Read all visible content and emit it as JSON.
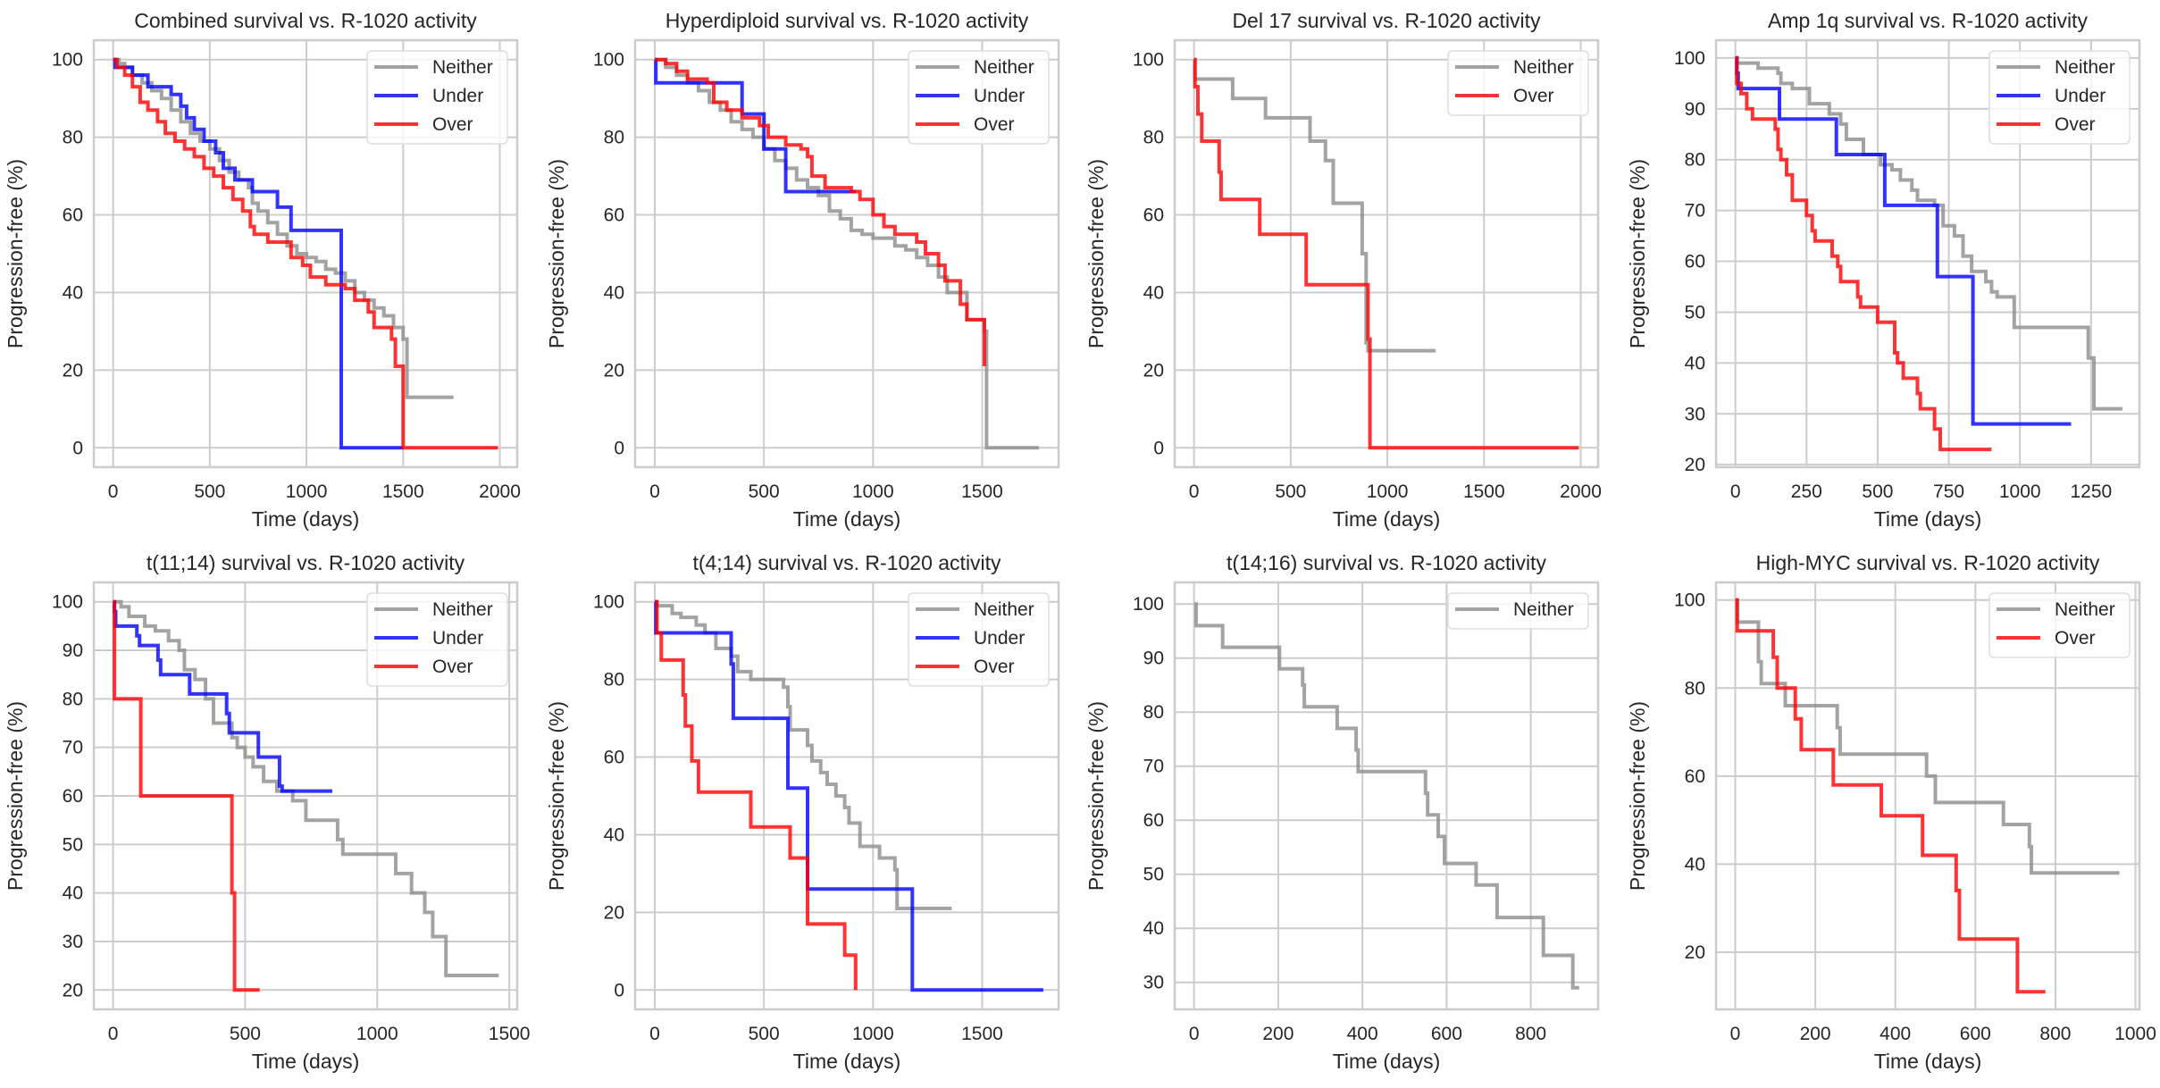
{
  "figure": {
    "layout": "2 rows x 4 columns",
    "series_colors": {
      "Neither": "#8c8c8c",
      "Under": "#0000ff",
      "Over": "#ff0000"
    }
  },
  "chart_data": [
    {
      "type": "line",
      "step": true,
      "title": "Combined survival vs. R-1020 activity",
      "xlabel": "Time (days)",
      "ylabel": "Progression-free (%)",
      "xticks": [
        0,
        500,
        1000,
        1500,
        2000
      ],
      "yticks": [
        0,
        20,
        40,
        60,
        80,
        100
      ],
      "xlim": [
        -100,
        2090
      ],
      "ylim": [
        -5,
        105
      ],
      "grid": true,
      "legend": {
        "position": "top-right",
        "entries": [
          "Neither",
          "Under",
          "Over"
        ]
      },
      "series": [
        {
          "name": "Neither",
          "x": [
            0,
            30,
            60,
            100,
            150,
            200,
            250,
            300,
            350,
            400,
            450,
            500,
            550,
            600,
            650,
            700,
            720,
            750,
            800,
            850,
            900,
            950,
            1000,
            1050,
            1100,
            1150,
            1200,
            1250,
            1300,
            1350,
            1400,
            1450,
            1500,
            1520,
            1760
          ],
          "y": [
            100,
            99,
            98,
            96,
            94,
            92,
            90,
            87,
            84,
            81,
            79,
            77,
            74,
            71,
            69,
            67,
            63,
            61,
            58,
            55,
            52,
            50,
            49,
            48,
            46,
            45,
            43,
            40,
            38,
            36,
            34,
            31,
            28,
            13,
            13
          ]
        },
        {
          "name": "Under",
          "x": [
            0,
            10,
            100,
            180,
            300,
            350,
            380,
            420,
            470,
            530,
            570,
            630,
            720,
            850,
            920,
            1180,
            1500
          ],
          "y": [
            100,
            98,
            96,
            93,
            91,
            88,
            85,
            82,
            79,
            76,
            72,
            69,
            66,
            62,
            56,
            0,
            0
          ]
        },
        {
          "name": "Over",
          "x": [
            0,
            20,
            60,
            100,
            140,
            180,
            230,
            270,
            320,
            370,
            420,
            470,
            520,
            570,
            620,
            670,
            710,
            730,
            800,
            880,
            920,
            980,
            1020,
            1100,
            1200,
            1250,
            1320,
            1350,
            1440,
            1460,
            1500,
            1990
          ],
          "y": [
            100,
            98,
            96,
            93,
            89,
            87,
            84,
            81,
            79,
            77,
            75,
            72,
            70,
            67,
            64,
            61,
            57,
            55,
            53,
            53,
            49,
            47,
            44,
            42,
            41,
            38,
            35,
            31,
            28,
            21,
            0,
            0
          ]
        }
      ]
    },
    {
      "type": "line",
      "step": true,
      "title": "Hyperdiploid survival vs. R-1020 activity",
      "xlabel": "Time (days)",
      "ylabel": "Progression-free (%)",
      "xticks": [
        0,
        500,
        1000,
        1500
      ],
      "yticks": [
        0,
        20,
        40,
        60,
        80,
        100
      ],
      "xlim": [
        -90,
        1850
      ],
      "ylim": [
        -5,
        105
      ],
      "grid": true,
      "legend": {
        "position": "top-right",
        "entries": [
          "Neither",
          "Under",
          "Over"
        ]
      },
      "series": [
        {
          "name": "Neither",
          "x": [
            0,
            50,
            100,
            150,
            200,
            250,
            300,
            350,
            400,
            450,
            500,
            550,
            600,
            650,
            700,
            750,
            800,
            850,
            900,
            950,
            1000,
            1100,
            1150,
            1200,
            1250,
            1300,
            1340,
            1430,
            1510,
            1520,
            1760
          ],
          "y": [
            100,
            98,
            96,
            94,
            92,
            89,
            87,
            84,
            82,
            80,
            77,
            74,
            72,
            69,
            67,
            65,
            61,
            59,
            56,
            55,
            54,
            52,
            51,
            49,
            47,
            44,
            40,
            33,
            30,
            0,
            0
          ]
        },
        {
          "name": "Under",
          "x": [
            0,
            5,
            400,
            500,
            600,
            920
          ],
          "y": [
            100,
            94,
            86,
            77,
            66,
            66
          ]
        },
        {
          "name": "Over",
          "x": [
            0,
            50,
            100,
            150,
            240,
            270,
            330,
            400,
            480,
            520,
            600,
            670,
            700,
            720,
            780,
            900,
            940,
            1000,
            1050,
            1100,
            1200,
            1240,
            1300,
            1330,
            1400,
            1430,
            1510
          ],
          "y": [
            100,
            99,
            97,
            95,
            94,
            89,
            87,
            85,
            83,
            80,
            78,
            77,
            75,
            70,
            67,
            66,
            64,
            60,
            57,
            55,
            53,
            50,
            47,
            43,
            37,
            33,
            21
          ]
        }
      ]
    },
    {
      "type": "line",
      "step": true,
      "title": "Del 17 survival vs. R-1020 activity",
      "xlabel": "Time (days)",
      "ylabel": "Progression-free (%)",
      "xticks": [
        0,
        500,
        1000,
        1500,
        2000
      ],
      "yticks": [
        0,
        20,
        40,
        60,
        80,
        100
      ],
      "xlim": [
        -100,
        2090
      ],
      "ylim": [
        -5,
        105
      ],
      "grid": true,
      "legend": {
        "position": "top-right",
        "entries": [
          "Neither",
          "Over"
        ]
      },
      "series": [
        {
          "name": "Neither",
          "x": [
            0,
            5,
            200,
            370,
            600,
            680,
            720,
            870,
            890,
            900,
            1250
          ],
          "y": [
            100,
            95,
            90,
            85,
            79,
            74,
            63,
            50,
            27,
            25,
            25
          ]
        },
        {
          "name": "Over",
          "x": [
            0,
            5,
            20,
            40,
            130,
            140,
            340,
            580,
            900,
            910,
            1990
          ],
          "y": [
            100,
            93,
            86,
            79,
            71,
            64,
            55,
            42,
            28,
            0,
            0
          ]
        }
      ]
    },
    {
      "type": "line",
      "step": true,
      "title": "Amp 1q survival vs. R-1020 activity",
      "xlabel": "Time (days)",
      "ylabel": "Progression-free (%)",
      "xticks": [
        0,
        250,
        500,
        750,
        1000,
        1250
      ],
      "yticks": [
        20,
        30,
        40,
        50,
        60,
        70,
        80,
        90,
        100
      ],
      "xlim": [
        -68,
        1420
      ],
      "ylim": [
        19.5,
        103.5
      ],
      "grid": true,
      "legend": {
        "position": "top-right",
        "entries": [
          "Neither",
          "Under",
          "Over"
        ]
      },
      "series": [
        {
          "name": "Neither",
          "x": [
            0,
            5,
            80,
            150,
            160,
            200,
            260,
            330,
            370,
            390,
            450,
            510,
            550,
            580,
            620,
            640,
            700,
            730,
            770,
            800,
            830,
            880,
            900,
            920,
            980,
            1240,
            1260,
            1360
          ],
          "y": [
            100,
            99,
            98,
            97,
            95,
            94,
            91,
            89,
            87,
            84,
            81,
            79,
            78,
            76,
            74,
            72,
            71,
            67,
            65,
            61,
            58,
            56,
            54,
            53,
            47,
            41,
            31,
            31
          ]
        },
        {
          "name": "Under",
          "x": [
            0,
            5,
            10,
            155,
            355,
            525,
            710,
            835,
            1180
          ],
          "y": [
            100,
            97,
            94,
            88,
            81,
            71,
            57,
            28,
            28
          ]
        },
        {
          "name": "Over",
          "x": [
            0,
            5,
            20,
            40,
            60,
            140,
            150,
            160,
            180,
            200,
            250,
            270,
            280,
            340,
            360,
            370,
            430,
            440,
            500,
            560,
            570,
            590,
            640,
            650,
            700,
            720,
            900
          ],
          "y": [
            100,
            95,
            93,
            90,
            88,
            86,
            82,
            80,
            77,
            72,
            69,
            66,
            64,
            61,
            59,
            56,
            53,
            51,
            48,
            42,
            40,
            37,
            34,
            31,
            27,
            23,
            23
          ]
        }
      ]
    },
    {
      "type": "line",
      "step": true,
      "title": "t(11;14) survival vs. R-1020 activity",
      "xlabel": "Time (days)",
      "ylabel": "Progression-free (%)",
      "xticks": [
        0,
        500,
        1000,
        1500
      ],
      "yticks": [
        20,
        30,
        40,
        50,
        60,
        70,
        80,
        90,
        100
      ],
      "xlim": [
        -73,
        1530
      ],
      "ylim": [
        16,
        104
      ],
      "grid": true,
      "legend": {
        "position": "top-right",
        "entries": [
          "Neither",
          "Under",
          "Over"
        ]
      },
      "series": [
        {
          "name": "Neither",
          "x": [
            0,
            30,
            60,
            120,
            160,
            210,
            250,
            270,
            310,
            350,
            380,
            450,
            470,
            500,
            530,
            570,
            620,
            680,
            730,
            850,
            870,
            1070,
            1130,
            1180,
            1210,
            1260,
            1460
          ],
          "y": [
            100,
            99,
            97,
            95,
            94,
            92,
            90,
            86,
            84,
            80,
            75,
            72,
            70,
            68,
            66,
            63,
            61,
            59,
            55,
            51,
            48,
            44,
            40,
            36,
            31,
            23,
            23
          ]
        },
        {
          "name": "Under",
          "x": [
            0,
            5,
            10,
            90,
            100,
            170,
            180,
            290,
            430,
            440,
            550,
            630,
            640,
            830
          ],
          "y": [
            100,
            98,
            95,
            93,
            91,
            88,
            85,
            81,
            77,
            73,
            68,
            62,
            61,
            61
          ]
        },
        {
          "name": "Over",
          "x": [
            0,
            5,
            105,
            450,
            460,
            555
          ],
          "y": [
            100,
            80,
            60,
            40,
            20,
            20
          ]
        }
      ]
    },
    {
      "type": "line",
      "step": true,
      "title": "t(4;14) survival vs. R-1020 activity",
      "xlabel": "Time (days)",
      "ylabel": "Progression-free (%)",
      "xticks": [
        0,
        500,
        1000,
        1500
      ],
      "yticks": [
        0,
        20,
        40,
        60,
        80,
        100
      ],
      "xlim": [
        -90,
        1850
      ],
      "ylim": [
        -5,
        105
      ],
      "grid": true,
      "legend": {
        "position": "top-right",
        "entries": [
          "Neither",
          "Under",
          "Over"
        ]
      },
      "series": [
        {
          "name": "Neither",
          "x": [
            0,
            10,
            80,
            120,
            190,
            230,
            280,
            350,
            380,
            440,
            590,
            610,
            620,
            700,
            720,
            760,
            790,
            830,
            870,
            890,
            940,
            1030,
            1100,
            1110,
            1360
          ],
          "y": [
            100,
            99,
            97,
            96,
            94,
            92,
            88,
            86,
            82,
            80,
            78,
            73,
            67,
            63,
            59,
            56,
            53,
            50,
            47,
            43,
            37,
            34,
            31,
            21,
            21
          ]
        },
        {
          "name": "Under",
          "x": [
            0,
            5,
            350,
            360,
            610,
            700,
            1180,
            1780
          ],
          "y": [
            100,
            92,
            84,
            70,
            52,
            26,
            0,
            0
          ]
        },
        {
          "name": "Over",
          "x": [
            0,
            10,
            30,
            130,
            140,
            170,
            200,
            440,
            620,
            700,
            870,
            920
          ],
          "y": [
            100,
            92,
            85,
            76,
            68,
            59,
            51,
            42,
            34,
            17,
            9,
            0
          ]
        }
      ]
    },
    {
      "type": "line",
      "step": true,
      "title": "t(14;16) survival vs. R-1020 activity",
      "xlabel": "Time (days)",
      "ylabel": "Progression-free (%)",
      "xticks": [
        0,
        200,
        400,
        600,
        800
      ],
      "yticks": [
        30,
        40,
        50,
        60,
        70,
        80,
        90,
        100
      ],
      "xlim": [
        -46,
        960
      ],
      "ylim": [
        25,
        104
      ],
      "grid": true,
      "legend": {
        "position": "top-right",
        "entries": [
          "Neither"
        ]
      },
      "series": [
        {
          "name": "Neither",
          "x": [
            0,
            5,
            68,
            203,
            258,
            262,
            340,
            385,
            390,
            550,
            555,
            580,
            595,
            670,
            720,
            830,
            900,
            915
          ],
          "y": [
            100,
            96,
            92,
            88,
            85,
            81,
            77,
            73,
            69,
            65,
            61,
            57,
            52,
            48,
            42,
            35,
            29,
            29
          ]
        }
      ]
    },
    {
      "type": "line",
      "step": true,
      "title": "High-MYC survival vs. R-1020 activity",
      "xlabel": "Time (days)",
      "ylabel": "Progression-free (%)",
      "xticks": [
        0,
        200,
        400,
        600,
        800,
        1000
      ],
      "yticks": [
        20,
        40,
        60,
        80,
        100
      ],
      "xlim": [
        -48,
        1010
      ],
      "ylim": [
        7,
        104
      ],
      "grid": true,
      "legend": {
        "position": "top-right",
        "entries": [
          "Neither",
          "Over"
        ]
      },
      "series": [
        {
          "name": "Neither",
          "x": [
            0,
            5,
            58,
            65,
            125,
            255,
            262,
            478,
            500,
            670,
            735,
            740,
            960
          ],
          "y": [
            100,
            95,
            86,
            81,
            76,
            71,
            65,
            60,
            54,
            49,
            44,
            38,
            38
          ]
        },
        {
          "name": "Over",
          "x": [
            0,
            5,
            95,
            105,
            150,
            165,
            245,
            365,
            468,
            552,
            560,
            705,
            775
          ],
          "y": [
            100,
            93,
            87,
            80,
            73,
            66,
            58,
            51,
            42,
            34,
            23,
            11,
            11
          ]
        }
      ]
    }
  ]
}
